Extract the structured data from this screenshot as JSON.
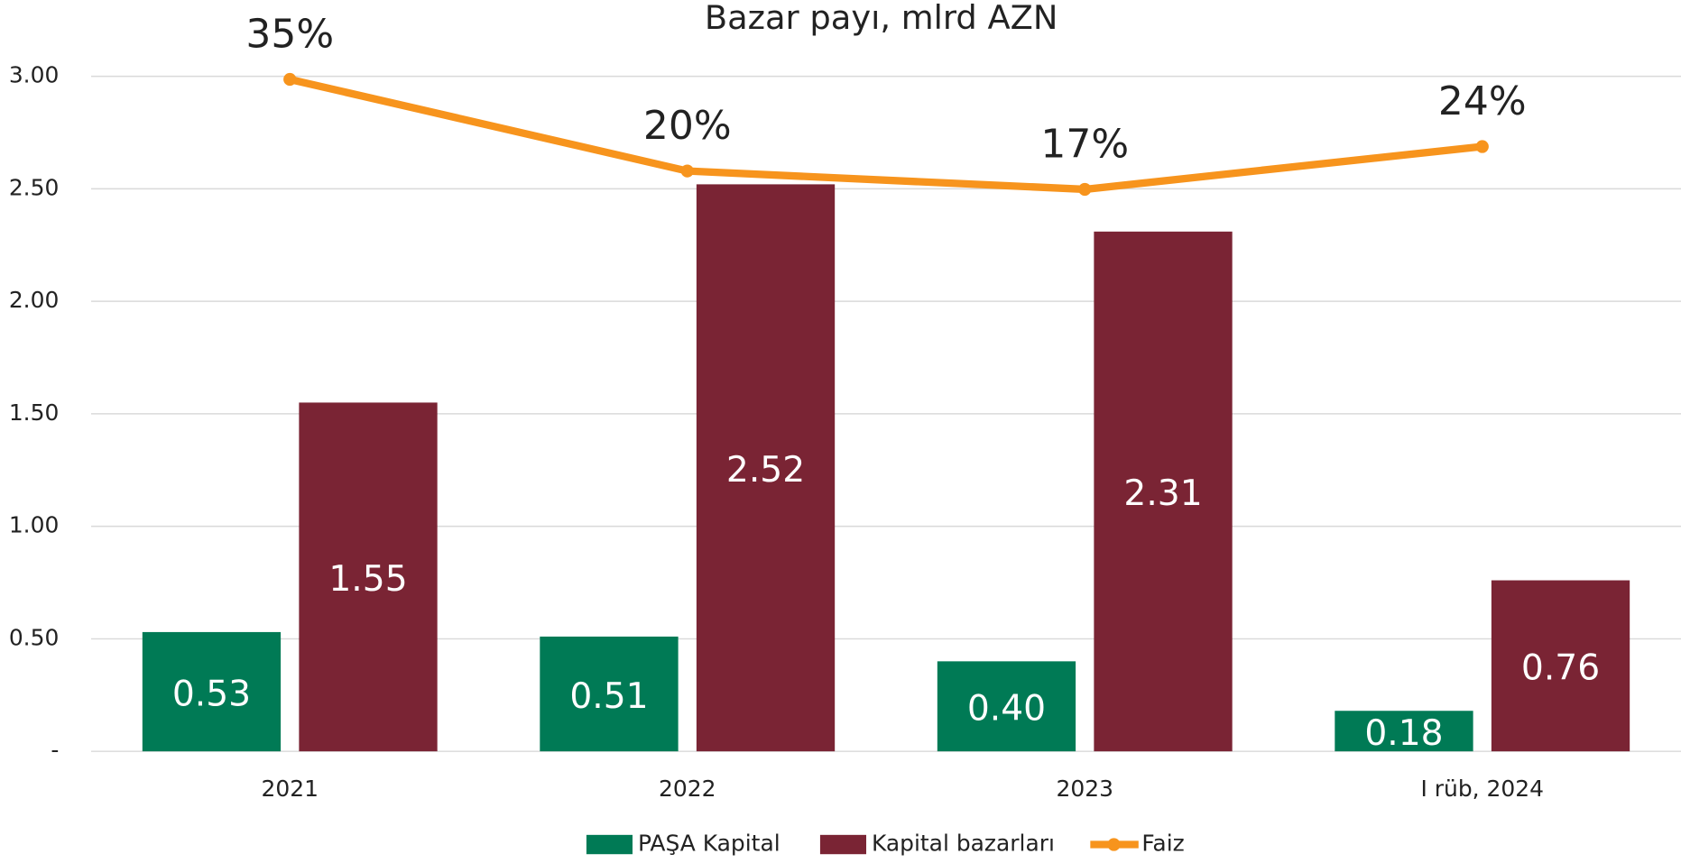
{
  "chart_data": {
    "type": "bar-line",
    "title": "Bazar payı, mlrd AZN",
    "categories": [
      "2021",
      "2022",
      "2023",
      "I rüb, 2024"
    ],
    "series": [
      {
        "name": "PAŞA Kapital",
        "type": "bar",
        "color": "#007a55",
        "values": [
          0.53,
          0.51,
          0.4,
          0.18
        ],
        "value_labels": [
          "0.53",
          "0.51",
          "0.40",
          "0.18"
        ]
      },
      {
        "name": "Kapital bazarları",
        "type": "bar",
        "color": "#7a2434",
        "values": [
          1.55,
          2.52,
          2.31,
          0.76
        ],
        "value_labels": [
          "1.55",
          "2.52",
          "2.31",
          "0.76"
        ]
      },
      {
        "name": "Faiz",
        "type": "line",
        "axis": "y2",
        "color": "#f7941d",
        "values": [
          35,
          20,
          17,
          24
        ],
        "value_labels": [
          "35%",
          "20%",
          "17%",
          "24%"
        ]
      }
    ],
    "ylim": [
      0,
      3.0
    ],
    "yticks": [
      {
        "value": 0,
        "label": "-"
      },
      {
        "value": 0.5,
        "label": "0.50"
      },
      {
        "value": 1.0,
        "label": "1.00"
      },
      {
        "value": 1.5,
        "label": "1.50"
      },
      {
        "value": 2.0,
        "label": "2.00"
      },
      {
        "value": 2.5,
        "label": "2.50"
      },
      {
        "value": 3.0,
        "label": "3.00"
      }
    ],
    "y2lim": [
      -75,
      35.5
    ],
    "grid": true,
    "legend": "bottom"
  }
}
